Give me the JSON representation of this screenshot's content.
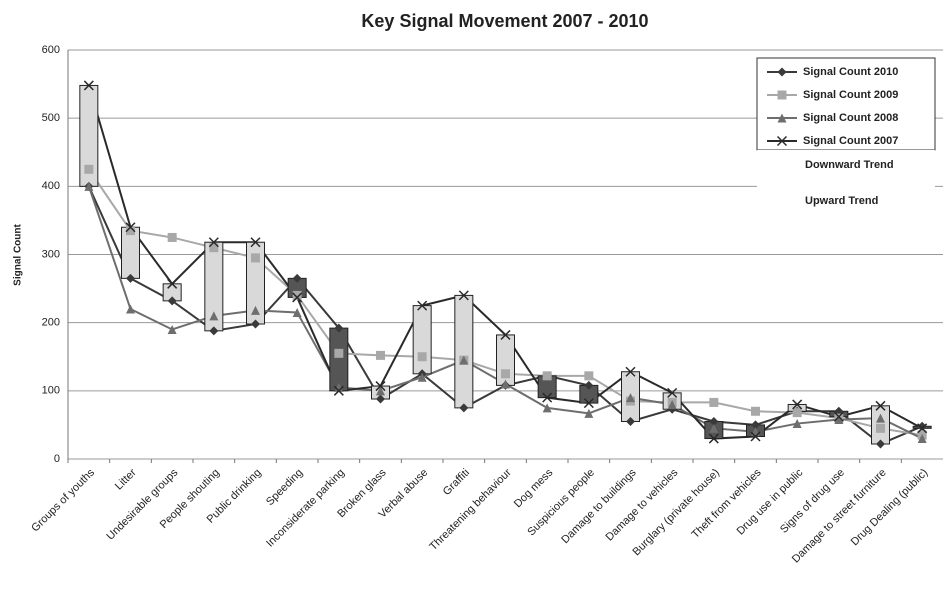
{
  "chart_data": {
    "type": "line",
    "title": "Key Signal Movement 2007 - 2010",
    "y_label": "Signal Count",
    "categories": [
      "Groups of youths",
      "Litter",
      "Undesirable groups",
      "People shouting",
      "Public drinking",
      "Speeding",
      "Inconsiderate parking",
      "Broken glass",
      "Verbal abuse",
      "Graffiti",
      "Threatening behaviour",
      "Dog mess",
      "Suspicious people",
      "Damage to buildings",
      "Damage to vehicles",
      "Burglary (private house)",
      "Theft from vehicles",
      "Drug use in public",
      "Signs of drug use",
      "Damage to street furniture",
      "Drug Dealing (public)"
    ],
    "series": [
      {
        "name": "Signal Count 2010",
        "color": "#3a3a3a",
        "marker": "diamond",
        "values": [
          400,
          265,
          232,
          188,
          198,
          265,
          192,
          88,
          125,
          75,
          108,
          122,
          108,
          55,
          73,
          55,
          50,
          70,
          70,
          22,
          48
        ]
      },
      {
        "name": "Signal Count 2009",
        "color": "#a8a8a8",
        "marker": "square",
        "values": [
          425,
          335,
          325,
          310,
          295,
          240,
          155,
          152,
          150,
          145,
          125,
          122,
          122,
          85,
          83,
          83,
          70,
          68,
          60,
          45,
          35
        ]
      },
      {
        "name": "Signal Count 2008",
        "color": "#6e6e6e",
        "marker": "triangle",
        "values": [
          400,
          220,
          190,
          210,
          218,
          215,
          105,
          100,
          120,
          145,
          110,
          75,
          67,
          90,
          80,
          45,
          40,
          52,
          58,
          60,
          30
        ]
      },
      {
        "name": "Signal Count 2007",
        "color": "#2a2a2a",
        "marker": "x",
        "values": [
          548,
          340,
          257,
          318,
          318,
          237,
          100,
          107,
          225,
          240,
          182,
          90,
          82,
          128,
          97,
          30,
          33,
          80,
          62,
          78,
          45
        ]
      }
    ],
    "up_down_bars": {
      "down": {
        "name": "Downward Trend",
        "color": "#555555"
      },
      "up": {
        "name": "Upward Trend",
        "color": "#d9d9d9"
      }
    },
    "ylim": [
      0,
      600
    ],
    "yticks": [
      0,
      100,
      200,
      300,
      400,
      500,
      600
    ],
    "grid": true,
    "legend": "top-right"
  }
}
